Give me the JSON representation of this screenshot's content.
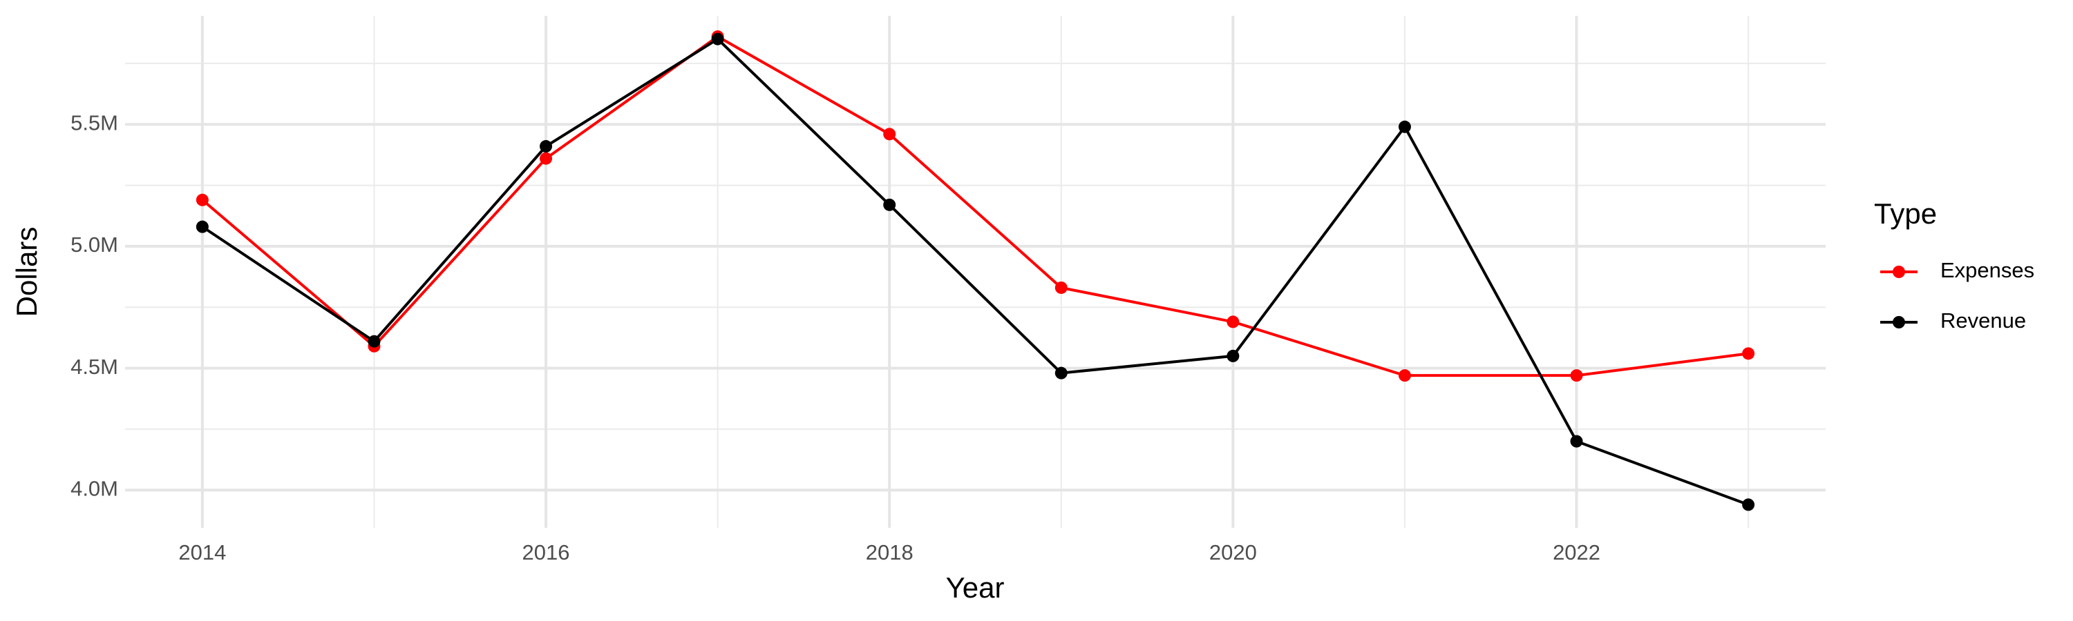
{
  "chart_data": {
    "type": "line",
    "x_label": "Year",
    "y_label": "Dollars",
    "x": [
      2014,
      2015,
      2016,
      2017,
      2018,
      2019,
      2020,
      2021,
      2022,
      2023
    ],
    "series": [
      {
        "name": "Expenses",
        "color": "#ff0000",
        "values": [
          5190000,
          4590000,
          5360000,
          5860000,
          5460000,
          4830000,
          4690000,
          4470000,
          4470000,
          4560000
        ]
      },
      {
        "name": "Revenue",
        "color": "#000000",
        "values": [
          5080000,
          4610000,
          5410000,
          5850000,
          5170000,
          4480000,
          4550000,
          5490000,
          4200000,
          3940000
        ]
      }
    ],
    "xlim": [
      2013.55,
      2023.45
    ],
    "xticks": [
      2014,
      2016,
      2018,
      2020,
      2022
    ],
    "ylim": [
      3845000,
      5945000
    ],
    "yticks": [
      {
        "value": 4000000,
        "label": "4.0M"
      },
      {
        "value": 4500000,
        "label": "4.5M"
      },
      {
        "value": 5000000,
        "label": "5.0M"
      },
      {
        "value": 5500000,
        "label": "5.5M"
      }
    ],
    "grid": true,
    "legend_title": "Type",
    "legend_position": "right"
  }
}
